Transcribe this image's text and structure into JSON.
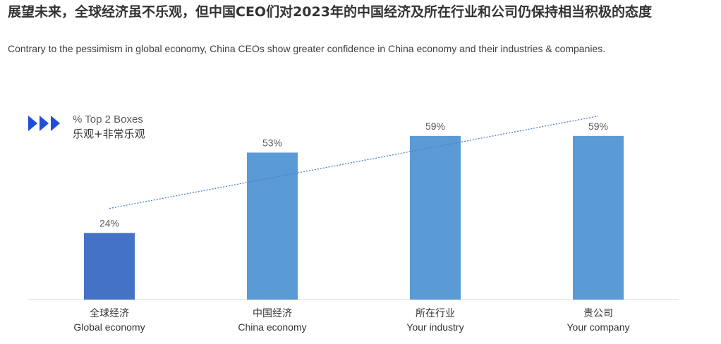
{
  "header": {
    "title_cn": "展望未来，全球经济虽不乐观，但中国CEO们对2023年的中国经济及所在行业和公司仍保持相当积极的态度",
    "subtitle_en": "Contrary to the pessimism in global economy, China CEOs show greater confidence in China economy and their industries & companies."
  },
  "legend": {
    "label_en": "% Top 2 Boxes",
    "label_cn": "乐观+非常乐观",
    "icon": "triple-chevron-right-icon"
  },
  "colors": {
    "highlight_bar": "#4472c4",
    "bar": "#5b9bd5",
    "trendline": "#4a7ec9",
    "legend_icon": "#1f4fd8",
    "axis": "#d9d9d9"
  },
  "chart_data": {
    "type": "bar",
    "categories": [
      "全球经济",
      "中国经济",
      "所在行业",
      "贵公司"
    ],
    "categories_en": [
      "Global economy",
      "China economy",
      "Your industry",
      "Your company"
    ],
    "values": [
      24,
      53,
      59,
      59
    ],
    "value_labels": [
      "24%",
      "53%",
      "59%",
      "59%"
    ],
    "unit": "%",
    "ylim": [
      0,
      60
    ],
    "trendline": "linear, dotted",
    "grid": false,
    "legend_position": "top-left"
  }
}
